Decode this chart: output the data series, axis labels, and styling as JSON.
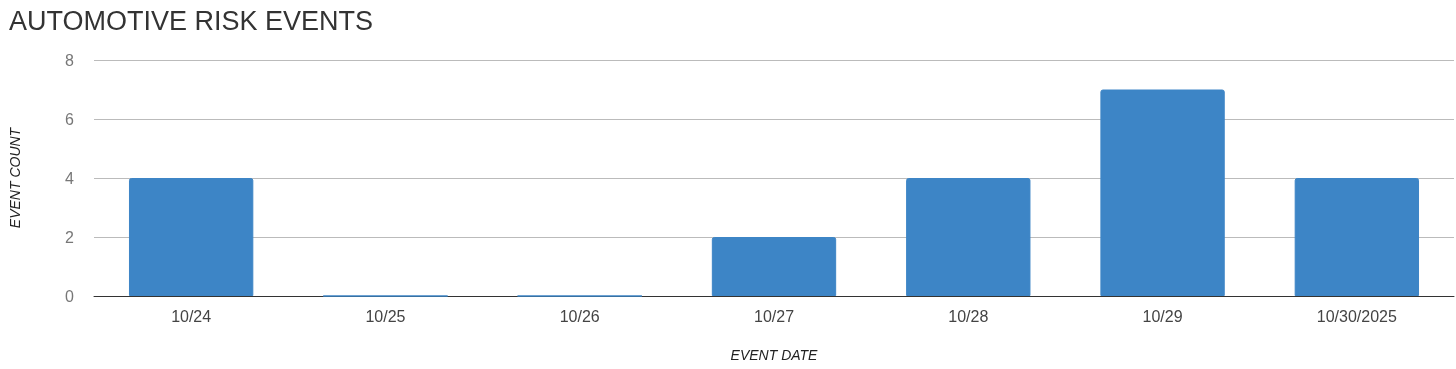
{
  "chart_data": {
    "type": "bar",
    "title": "AUTOMOTIVE RISK EVENTS",
    "xlabel": "EVENT DATE",
    "ylabel": "EVENT COUNT",
    "categories": [
      "10/24",
      "10/25",
      "10/26",
      "10/27",
      "10/28",
      "10/29",
      "10/30/2025"
    ],
    "values": [
      4,
      0,
      0,
      2,
      4,
      7,
      4
    ],
    "color": "#3d85c6",
    "ylim": [
      0,
      8
    ],
    "yticks": [
      0,
      2,
      4,
      6,
      8
    ],
    "grid": "y"
  }
}
